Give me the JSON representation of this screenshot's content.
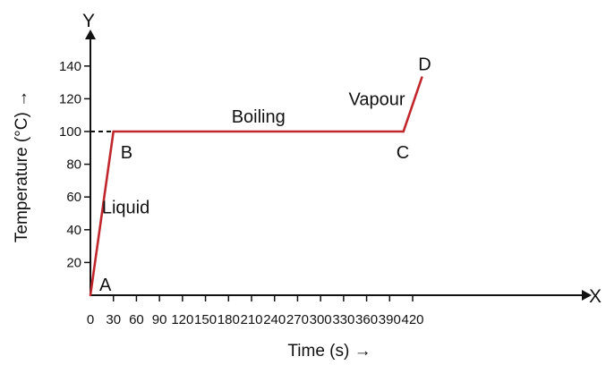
{
  "colors": {
    "axis": "#111111",
    "series": "#c0272d",
    "text": "#111111"
  },
  "chart_data": {
    "type": "line",
    "xlabel": "Time (s) →",
    "ylabel": "Temperature (°C) →",
    "x_axis_letter": "X",
    "y_axis_letter": "Y",
    "origin_label": "0",
    "xlim": [
      0,
      440
    ],
    "ylim": [
      0,
      160
    ],
    "x_ticks": [
      0,
      30,
      60,
      90,
      120,
      150,
      180,
      210,
      240,
      270,
      300,
      330,
      360,
      390,
      420
    ],
    "y_ticks": [
      20,
      40,
      60,
      80,
      100,
      120,
      140
    ],
    "grid": false,
    "legend": "none",
    "series": [
      {
        "points": [
          {
            "x": 0,
            "y": 0
          },
          {
            "x": 30,
            "y": 100
          },
          {
            "x": 408,
            "y": 100
          },
          {
            "x": 432,
            "y": 133
          }
        ]
      }
    ],
    "reference_line": {
      "style": "dashed",
      "from_x": 0,
      "to_x": 30,
      "y": 100
    },
    "point_labels": [
      {
        "text": "A",
        "x": 0,
        "y": 0
      },
      {
        "text": "B",
        "x": 30,
        "y": 100
      },
      {
        "text": "C",
        "x": 408,
        "y": 100
      },
      {
        "text": "D",
        "x": 432,
        "y": 133
      }
    ],
    "annotations": [
      {
        "text": "Liquid",
        "x": 15,
        "y": 50
      },
      {
        "text": "Boiling",
        "x": 219,
        "y": 100
      },
      {
        "text": "Vapour",
        "x": 420,
        "y": 116
      }
    ]
  }
}
